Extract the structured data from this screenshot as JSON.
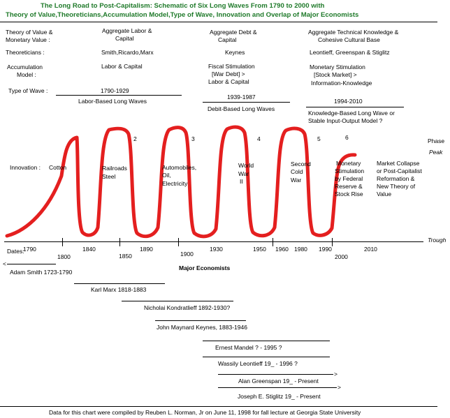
{
  "title": {
    "line1": "The Long Road to Post-Capitalism: Schematic of Six Long Waves From 1790 to 2000 with",
    "line2": "Theory of Value,Theoreticians,Accumulation Model,Type of Wave, Innovation and Overlap of Major Economists"
  },
  "row_labels": {
    "theory_value_1": "Theory of Value &",
    "theory_value_2": "Monetary Value :",
    "theoreticians": "Theoreticians :",
    "accumulation_1": "Accumulation",
    "accumulation_2": "Model :",
    "type_of_wave": "Type of Wave :",
    "innovation": "Innovation :",
    "dates": "Dates:"
  },
  "columns": {
    "labor": {
      "value_1": "Aggregate Labor &",
      "value_2": "Capital",
      "theoreticians": "Smith,Ricardo,Marx",
      "model": "Labor & Capital",
      "period": "1790-1929",
      "wave_type": "Labor-Based Long Waves"
    },
    "debt": {
      "value_1": "Aggregate Debt &",
      "value_2": "Capital",
      "theoreticians": "Keynes",
      "model_1": "Fiscal Stimulation",
      "model_2": "[War Debt]  >",
      "model_3": "Labor & Capital",
      "period": "1939-1987",
      "wave_type": "Debit-Based Long Waves"
    },
    "knowledge": {
      "value_1": "Aggregate Technical Knowledge &",
      "value_2": "Cohesive Cultural Base",
      "theoreticians": "Leontieff, Greenspan & Stiglitz",
      "model_1": "Monetary Stimulation",
      "model_2": "[Stock Market] >",
      "model_3": "Information-Knowledge",
      "period": "1994-2010",
      "wave_type_1": "Knowledge-Based Long Wave or",
      "wave_type_2": "Stable Input-Output Model ?"
    }
  },
  "wave_numbers": [
    "2",
    "3",
    "4",
    "5",
    "6"
  ],
  "innovations": {
    "w1": "Cotton",
    "w2_1": "Railroads",
    "w2_2": "Steel",
    "w3_1": "Automobiles,",
    "w3_2": "Oil,",
    "w3_3": "Electricity",
    "w4_1": "World",
    "w4_2": "War",
    "w4_3": "II",
    "w5_1": "Second",
    "w5_2": "Cold",
    "w5_3": "War",
    "w6_1": "Monetary",
    "w6_2": "Stimulation",
    "w6_3": "by Federal",
    "w6_4": "Reserve &",
    "w6_5": "Stock Rise",
    "future_1": "Market Collapse",
    "future_2": "or Post-Capitalist",
    "future_3": "Reformation &",
    "future_4": "New Theory of",
    "future_5": "Value"
  },
  "phase_labels": {
    "phase": "Phase",
    "peak": "Peak",
    "trough": "Trough"
  },
  "dates_upper": [
    "1790",
    "1840",
    "1890",
    "1930",
    "1950",
    "1960",
    "1980",
    "1990",
    "2010"
  ],
  "dates_lower": [
    "1800",
    "1850",
    "1900",
    "2000"
  ],
  "economists_heading": "Major Economists",
  "economists": [
    "Adam Smith 1723-1790",
    "Karl Marx 1818-1883",
    "Nicholai Kondratlieff 1892-1930?",
    "John Maynard Keynes, 1883-1946",
    "Ernest Mandel  ? - 1995 ?",
    "Wassily Leontieff  19_  - 1996 ?",
    "Alan Greenspan  19_  - Present",
    "Joseph E. Stiglitz  19_  - Present"
  ],
  "arrows": {
    "left": "<",
    "right": ">"
  },
  "footer": "Data for this chart were compiled by Reuben L. Norman, Jr on June 11, 1998 for fall lecture at Georgia State University",
  "colors": {
    "title": "#1f7a2a",
    "wave": "#e41f1f"
  }
}
